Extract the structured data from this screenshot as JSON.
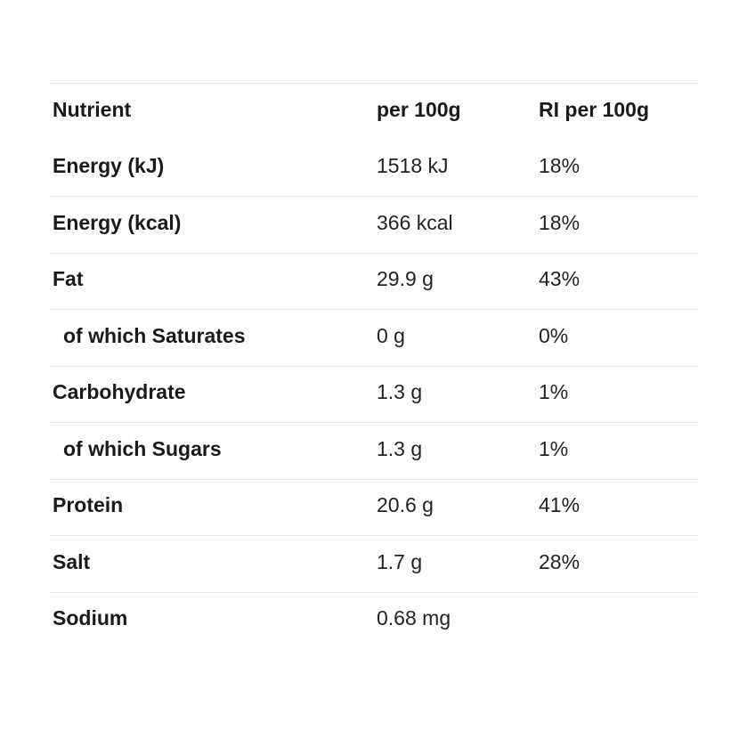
{
  "table": {
    "headers": {
      "nutrient": "Nutrient",
      "per100g": "per 100g",
      "ri": "RI per 100g"
    },
    "rows": [
      {
        "nutrient": "Energy (kJ)",
        "per100g": "1518 kJ",
        "ri": "18%",
        "sub": false
      },
      {
        "nutrient": "Energy (kcal)",
        "per100g": "366 kcal",
        "ri": "18%",
        "sub": false
      },
      {
        "nutrient": "Fat",
        "per100g": "29.9 g",
        "ri": "43%",
        "sub": false
      },
      {
        "nutrient": "of which Saturates",
        "per100g": "0 g",
        "ri": "0%",
        "sub": true
      },
      {
        "nutrient": "Carbohydrate",
        "per100g": "1.3 g",
        "ri": "1%",
        "sub": false
      },
      {
        "nutrient": "of which Sugars",
        "per100g": "1.3 g",
        "ri": "1%",
        "sub": true
      },
      {
        "nutrient": "Protein",
        "per100g": "20.6 g",
        "ri": "41%",
        "sub": false
      },
      {
        "nutrient": "Salt",
        "per100g": "1.7 g",
        "ri": "28%",
        "sub": false
      },
      {
        "nutrient": "Sodium",
        "per100g": "0.68 mg",
        "ri": "",
        "sub": false
      }
    ]
  }
}
